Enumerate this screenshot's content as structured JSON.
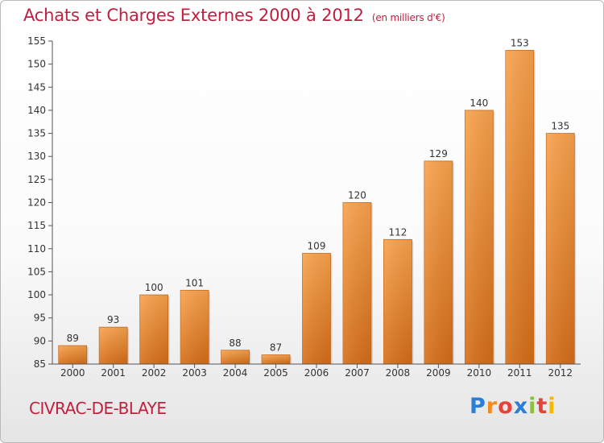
{
  "chart_data": {
    "type": "bar",
    "title": "Achats et Charges Externes 2000 à 2012",
    "unit": "(en milliers d'€)",
    "categories": [
      "2000",
      "2001",
      "2002",
      "2003",
      "2004",
      "2005",
      "2006",
      "2007",
      "2008",
      "2009",
      "2010",
      "2011",
      "2012"
    ],
    "values": [
      89,
      93,
      100,
      101,
      88,
      87,
      109,
      120,
      112,
      129,
      140,
      153,
      135
    ],
    "ylim": [
      85,
      155
    ],
    "yticks": [
      85,
      90,
      95,
      100,
      105,
      110,
      115,
      120,
      125,
      130,
      135,
      140,
      145,
      150,
      155
    ],
    "grid": false,
    "bar_color": "#f0913a",
    "xlabel": "",
    "ylabel": ""
  },
  "footer": {
    "commune": "CIVRAC-DE-BLAYE",
    "logo_letters": [
      "P",
      "r",
      "o",
      "x",
      "i",
      "t",
      "i"
    ],
    "logo_colors": [
      "#2a7fd4",
      "#f28c1e",
      "#e8403a",
      "#2a7fd4",
      "#8cbf3f",
      "#e8403a",
      "#f5b800"
    ]
  },
  "colors": {
    "title": "#c0203f",
    "axis": "#555555"
  }
}
